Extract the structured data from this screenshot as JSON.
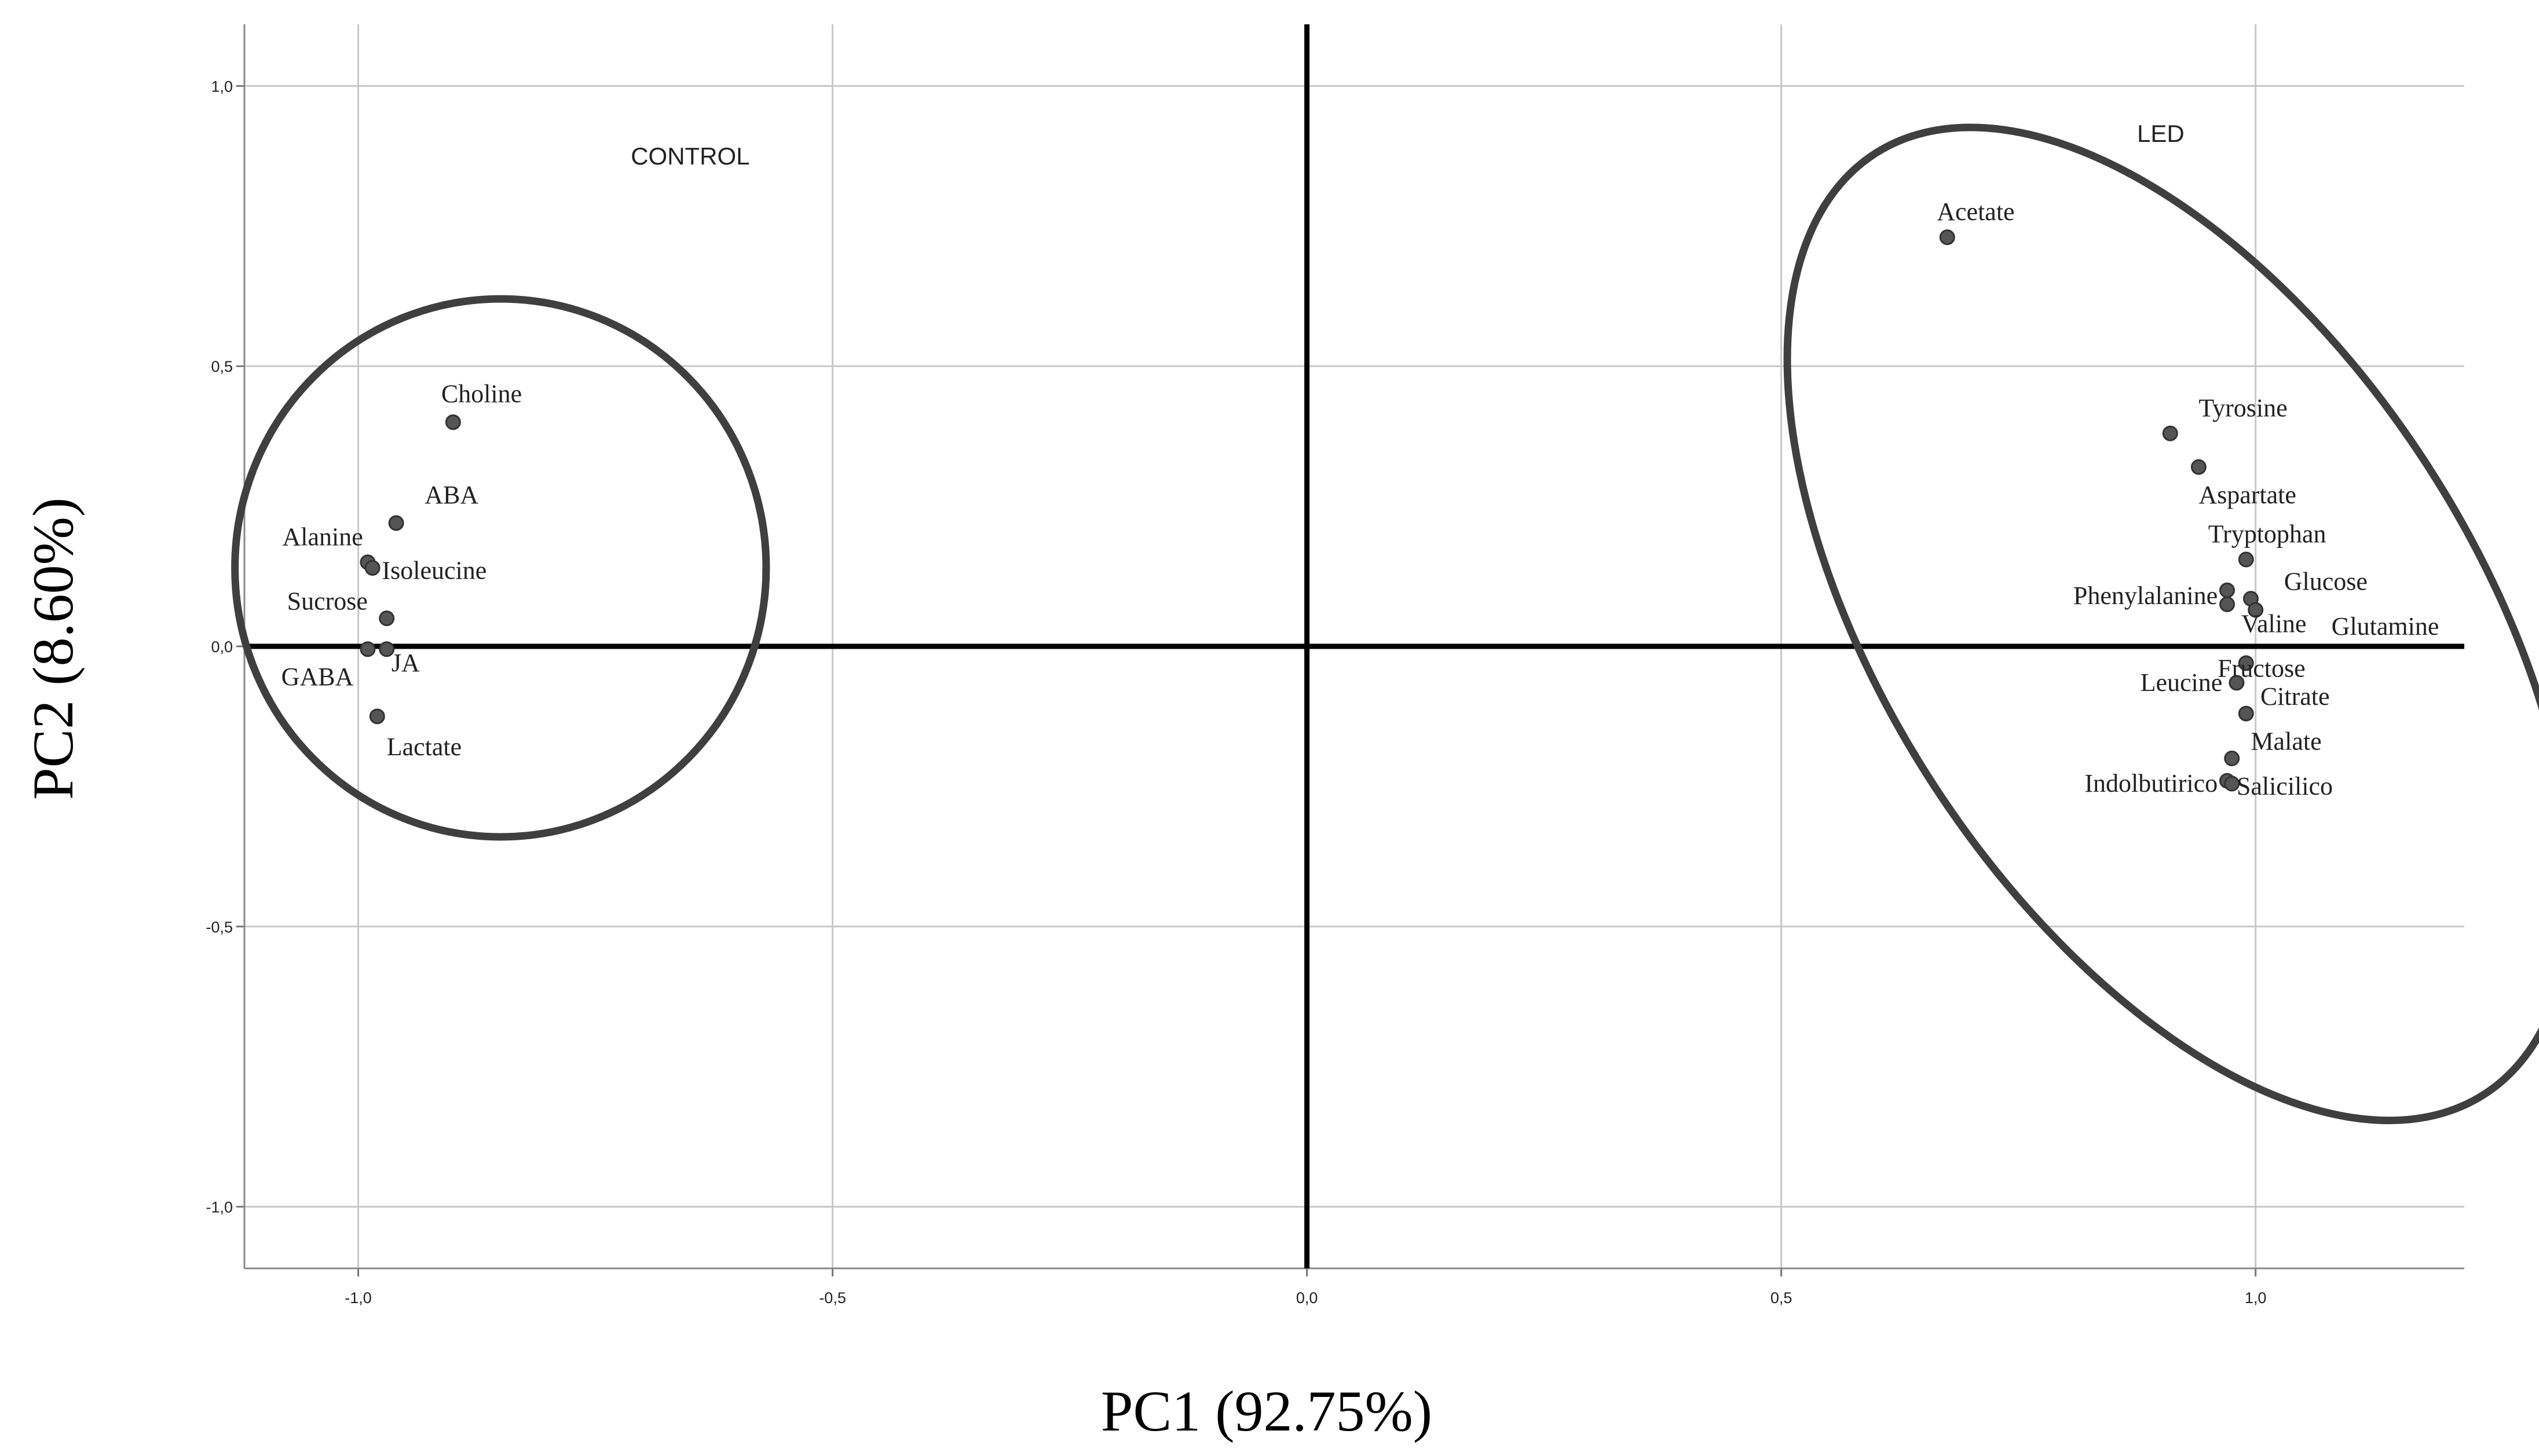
{
  "chart_data": {
    "type": "scatter",
    "title": "",
    "xlabel": "PC1 (92.75%)",
    "ylabel": "PC2 (8.60%)",
    "xlim": [
      -1.12,
      1.22
    ],
    "ylim": [
      -1.11,
      1.11
    ],
    "xticks": [
      -1.0,
      -0.5,
      0.0,
      0.5,
      1.0
    ],
    "yticks": [
      -1.0,
      -0.5,
      0.0,
      0.5,
      1.0
    ],
    "xtick_labels": [
      "-1,0",
      "-0,5",
      "0,0",
      "0,5",
      "1,0"
    ],
    "ytick_labels": [
      "-1,0",
      "-0,5",
      "0,0",
      "0,5",
      "1,0"
    ],
    "grid": true,
    "groups": [
      {
        "name": "CONTROL",
        "ellipse": {
          "cx": -0.85,
          "cy": 0.14,
          "rx": 0.28,
          "ry": 0.48,
          "angle_deg": 0
        }
      },
      {
        "name": "LED",
        "ellipse": {
          "cx": 0.92,
          "cy": 0.04,
          "rx": 0.31,
          "ry": 1.0,
          "angle_deg": -33
        }
      }
    ],
    "points": [
      {
        "label": "Choline",
        "x": -0.9,
        "y": 0.4,
        "label_dx": 0.03,
        "label_dy": 0.05,
        "anchor": "middle"
      },
      {
        "label": "ABA",
        "x": -0.96,
        "y": 0.22,
        "label_dx": 0.03,
        "label_dy": 0.05,
        "anchor": "start"
      },
      {
        "label": "Alanine",
        "x": -0.99,
        "y": 0.15,
        "label_dx": -0.005,
        "label_dy": 0.045,
        "anchor": "end"
      },
      {
        "label": "Isoleucine",
        "x": -0.985,
        "y": 0.14,
        "label_dx": 0.01,
        "label_dy": -0.005,
        "anchor": "start"
      },
      {
        "label": "Sucrose",
        "x": -0.97,
        "y": 0.05,
        "label_dx": -0.02,
        "label_dy": 0.03,
        "anchor": "end"
      },
      {
        "label": "GABA",
        "x": -0.99,
        "y": -0.005,
        "label_dx": -0.015,
        "label_dy": -0.05,
        "anchor": "end"
      },
      {
        "label": "JA",
        "x": -0.97,
        "y": -0.005,
        "label_dx": 0.005,
        "label_dy": -0.025,
        "anchor": "start"
      },
      {
        "label": "Lactate",
        "x": -0.98,
        "y": -0.125,
        "label_dx": 0.01,
        "label_dy": -0.055,
        "anchor": "start"
      },
      {
        "label": "Acetate",
        "x": 0.675,
        "y": 0.73,
        "label_dx": 0.03,
        "label_dy": 0.045,
        "anchor": "middle"
      },
      {
        "label": "Tyrosine",
        "x": 0.91,
        "y": 0.38,
        "label_dx": 0.03,
        "label_dy": 0.045,
        "anchor": "start"
      },
      {
        "label": "Aspartate",
        "x": 0.94,
        "y": 0.32,
        "label_dx": 0.0,
        "label_dy": -0.05,
        "anchor": "start"
      },
      {
        "label": "Tryptophan",
        "x": 0.99,
        "y": 0.155,
        "label_dx": -0.04,
        "label_dy": 0.045,
        "anchor": "start"
      },
      {
        "label": "Phenylalanine",
        "x": 0.97,
        "y": 0.1,
        "label_dx": -0.01,
        "label_dy": -0.01,
        "anchor": "end"
      },
      {
        "label": "Glucose",
        "x": 0.995,
        "y": 0.085,
        "label_dx": 0.035,
        "label_dy": 0.03,
        "anchor": "start"
      },
      {
        "label": "Valine",
        "x": 0.97,
        "y": 0.075,
        "label_dx": 0.015,
        "label_dy": -0.035,
        "anchor": "start"
      },
      {
        "label": "Glutamine",
        "x": 1.0,
        "y": 0.065,
        "label_dx": 0.08,
        "label_dy": -0.03,
        "anchor": "start"
      },
      {
        "label": "Fructose",
        "x": 0.99,
        "y": -0.03,
        "label_dx": -0.03,
        "label_dy": -0.01,
        "anchor": "start"
      },
      {
        "label": "Leucine",
        "x": 0.98,
        "y": -0.065,
        "label_dx": -0.015,
        "label_dy": 0.0,
        "anchor": "end"
      },
      {
        "label": "Citrate",
        "x": 0.99,
        "y": -0.12,
        "label_dx": 0.015,
        "label_dy": 0.03,
        "anchor": "start"
      },
      {
        "label": "Malate",
        "x": 0.975,
        "y": -0.2,
        "label_dx": 0.02,
        "label_dy": 0.03,
        "anchor": "start"
      },
      {
        "label": "Indolbutirico",
        "x": 0.97,
        "y": -0.24,
        "label_dx": -0.01,
        "label_dy": -0.005,
        "anchor": "end"
      },
      {
        "label": "Salicilico",
        "x": 0.975,
        "y": -0.245,
        "label_dx": 0.005,
        "label_dy": -0.005,
        "anchor": "start"
      }
    ],
    "group_labels": [
      {
        "text": "CONTROL",
        "x": -0.65,
        "y": 0.86
      },
      {
        "text": "LED",
        "x": 0.9,
        "y": 0.9
      }
    ],
    "colors": {
      "point": "#555555",
      "ellipse": "#3f3f3f",
      "grid": "#c8c8c8",
      "axis": "#000000"
    }
  }
}
